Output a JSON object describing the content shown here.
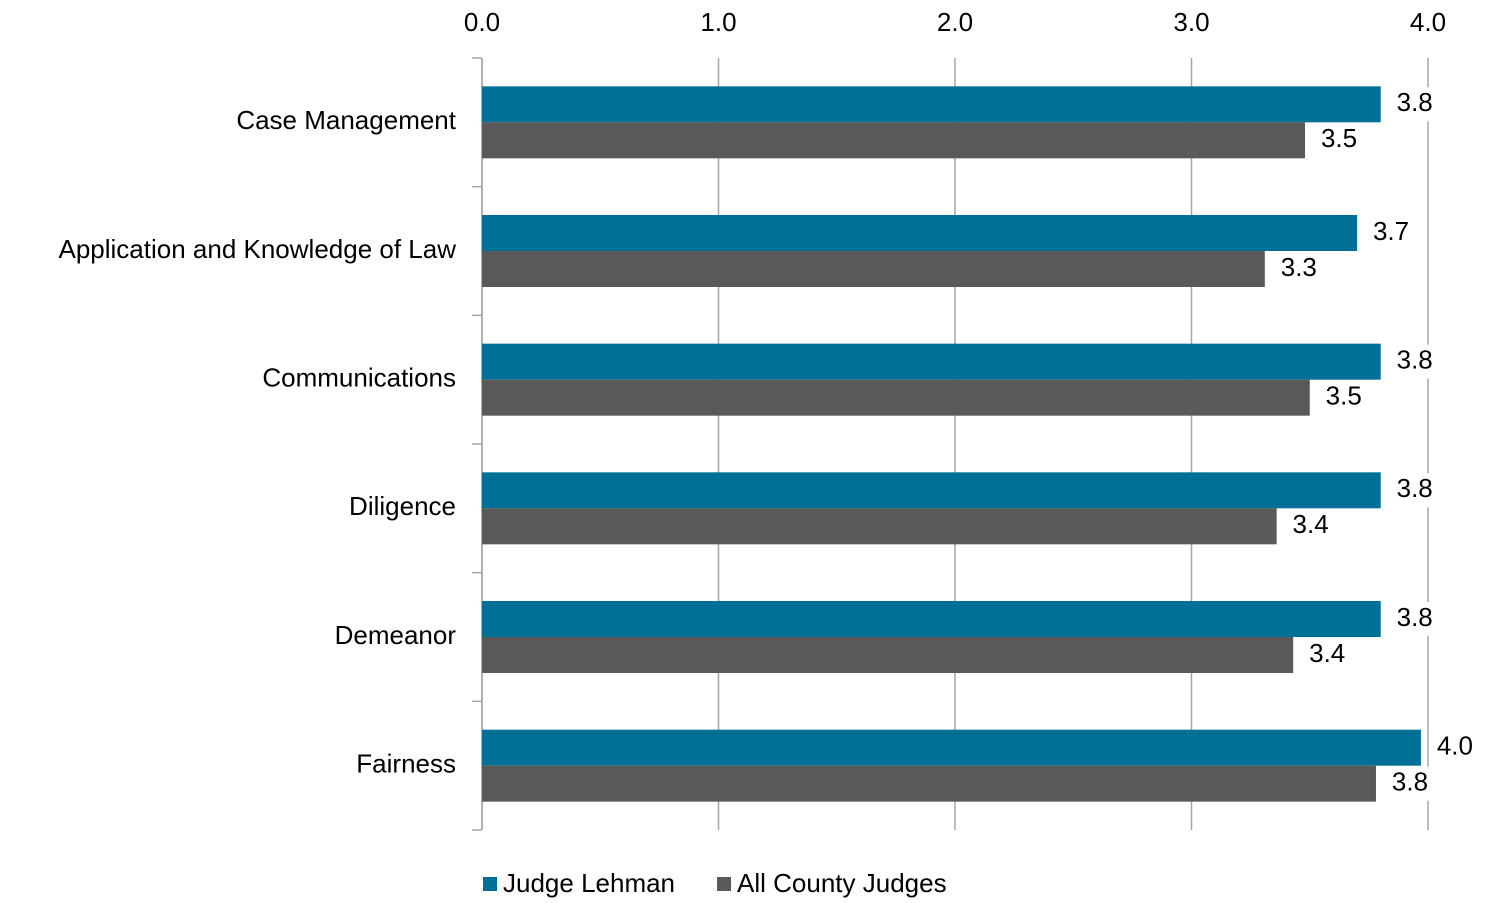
{
  "chart_data": {
    "type": "hbar",
    "categories": [
      "Case Management",
      "Application and Knowledge of Law",
      "Communications",
      "Diligence",
      "Demeanor",
      "Fairness"
    ],
    "series": [
      {
        "name": "Judge Lehman",
        "color": "#007096",
        "values": [
          3.8,
          3.7,
          3.8,
          3.8,
          3.8,
          3.97
        ],
        "value_labels": [
          "3.8",
          "3.7",
          "3.8",
          "3.8",
          "3.8",
          "4.0"
        ]
      },
      {
        "name": "All County Judges",
        "color": "#595959",
        "values": [
          3.48,
          3.31,
          3.5,
          3.36,
          3.43,
          3.78
        ],
        "value_labels": [
          "3.5",
          "3.3",
          "3.5",
          "3.4",
          "3.4",
          "3.8"
        ]
      }
    ],
    "xlim": [
      0,
      4
    ],
    "xticks": [
      {
        "value": 0,
        "label": "0.0"
      },
      {
        "value": 1,
        "label": "1.0"
      },
      {
        "value": 2,
        "label": "2.0"
      },
      {
        "value": 3,
        "label": "3.0"
      },
      {
        "value": 4,
        "label": "4.0"
      }
    ],
    "grid": true,
    "legend": "bottom"
  }
}
